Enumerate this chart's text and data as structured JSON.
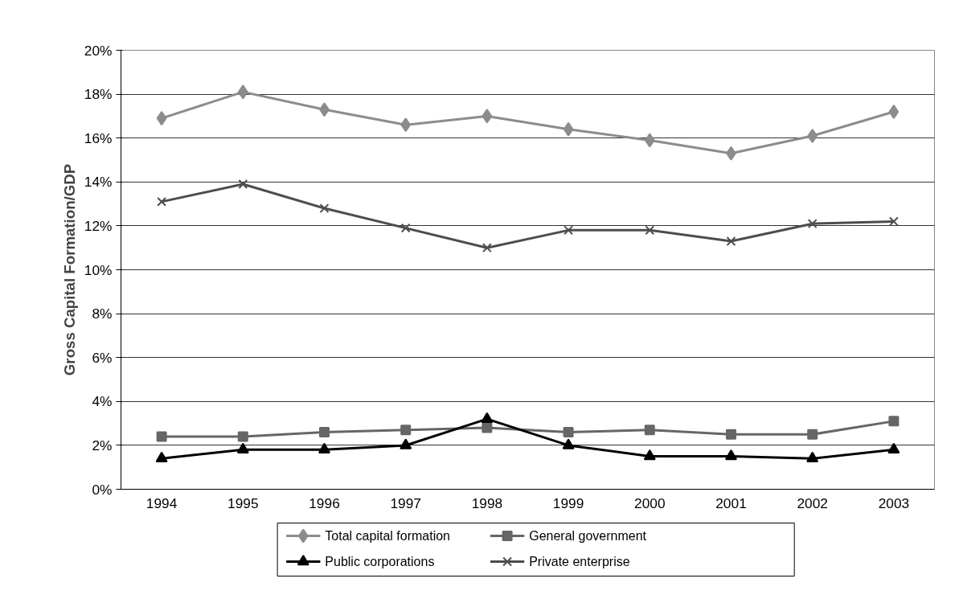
{
  "chart_data": {
    "type": "line",
    "ylabel": "Gross Capital Formation/GDP",
    "categories": [
      "1994",
      "1995",
      "1996",
      "1997",
      "1998",
      "1999",
      "2000",
      "2001",
      "2002",
      "2003"
    ],
    "series": [
      {
        "name": "Total capital formation",
        "color": "#8c8c8c",
        "marker": "diamond",
        "values": [
          16.9,
          18.1,
          17.3,
          16.6,
          17.0,
          16.4,
          15.9,
          15.3,
          16.1,
          17.2
        ]
      },
      {
        "name": "General government",
        "color": "#666666",
        "marker": "square",
        "values": [
          2.4,
          2.4,
          2.6,
          2.7,
          2.8,
          2.6,
          2.7,
          2.5,
          2.5,
          3.1
        ]
      },
      {
        "name": "Public corporations",
        "color": "#000000",
        "marker": "triangle",
        "values": [
          1.4,
          1.8,
          1.8,
          2.0,
          3.2,
          2.0,
          1.5,
          1.5,
          1.4,
          1.8
        ]
      },
      {
        "name": "Private enterprise",
        "color": "#4d4d4d",
        "marker": "cross",
        "values": [
          13.1,
          13.9,
          12.8,
          11.9,
          11.0,
          11.8,
          11.8,
          11.3,
          12.1,
          12.2
        ]
      }
    ],
    "ylim": [
      0,
      20
    ],
    "yticks": [
      {
        "value": 0,
        "label": "0%"
      },
      {
        "value": 2,
        "label": "2%"
      },
      {
        "value": 4,
        "label": "4%"
      },
      {
        "value": 6,
        "label": "6%"
      },
      {
        "value": 8,
        "label": "8%"
      },
      {
        "value": 10,
        "label": "10%"
      },
      {
        "value": 12,
        "label": "12%"
      },
      {
        "value": 14,
        "label": "14%"
      },
      {
        "value": 16,
        "label": "16%"
      },
      {
        "value": 18,
        "label": "18%"
      },
      {
        "value": 20,
        "label": "20%"
      }
    ],
    "grid": "y",
    "legend": "bottom",
    "line_style": "solid"
  }
}
